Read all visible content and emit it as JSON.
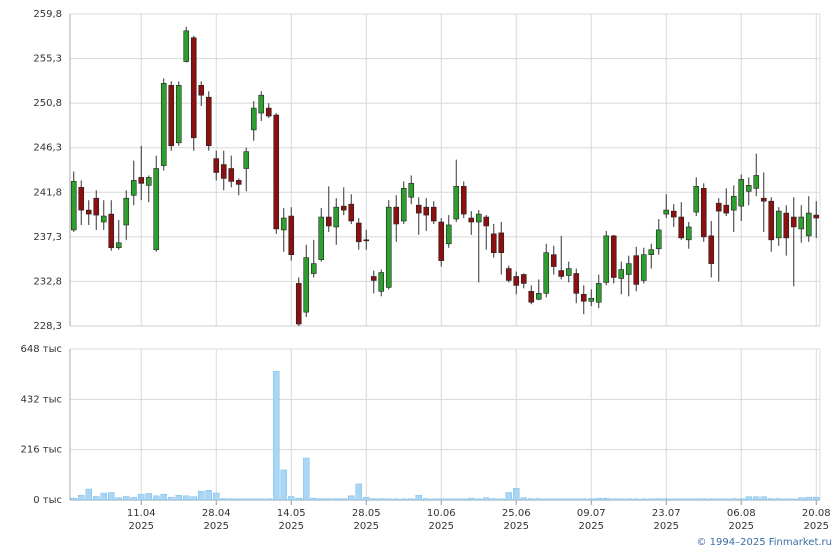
{
  "chart_data": [
    {
      "type": "candlestick",
      "ylim": [
        228.3,
        259.8
      ],
      "yticks": [
        {
          "value": 228.3,
          "label": "228,3"
        },
        {
          "value": 232.8,
          "label": "232,8"
        },
        {
          "value": 237.3,
          "label": "237,3"
        },
        {
          "value": 241.8,
          "label": "241,8"
        },
        {
          "value": 246.3,
          "label": "246,3"
        },
        {
          "value": 250.8,
          "label": "250,8"
        },
        {
          "value": 255.3,
          "label": "255,3"
        },
        {
          "value": 259.8,
          "label": "259,8"
        }
      ],
      "up_color": "#2e9e2e",
      "down_color": "#8b1010",
      "grid": true,
      "open": [
        238.0,
        242.3,
        240.0,
        241.2,
        238.8,
        239.6,
        236.2,
        238.5,
        241.5,
        243.3,
        242.5,
        236.0,
        244.5,
        252.6,
        246.8,
        255.0,
        257.4,
        252.6,
        251.4,
        245.2,
        244.6,
        244.2,
        243.0,
        244.2,
        248.1,
        249.8,
        250.3,
        249.6,
        238.0,
        239.4,
        232.6,
        229.7,
        233.6,
        235.0,
        239.3,
        238.3,
        240.4,
        240.6,
        238.7,
        237.0,
        233.3,
        231.8,
        232.2,
        240.3,
        238.9,
        241.3,
        240.5,
        240.3,
        240.3,
        238.8,
        236.6,
        239.1,
        242.4,
        239.2,
        238.8,
        239.3,
        237.6,
        237.7,
        234.1,
        233.3,
        233.5,
        231.8,
        231.0,
        231.6,
        235.5,
        233.9,
        233.4,
        233.6,
        231.5,
        230.8,
        230.7,
        232.7,
        237.4,
        233.1,
        233.5,
        235.4,
        232.9,
        235.5,
        236.1,
        239.6,
        239.9,
        239.3,
        237.0,
        239.8,
        242.2,
        237.4,
        240.7,
        240.5,
        240.0,
        240.4,
        241.9,
        242.2,
        241.2,
        240.9,
        237.2,
        239.7,
        239.3,
        238.1,
        237.4,
        239.5
      ],
      "high": [
        243.9,
        243.0,
        241.0,
        242.0,
        241.0,
        241.0,
        239.0,
        242.0,
        245.0,
        246.5,
        243.5,
        245.5,
        253.3,
        253.0,
        253.0,
        258.5,
        257.6,
        253.0,
        252.0,
        246.0,
        246.0,
        245.5,
        243.2,
        246.3,
        251.0,
        252.0,
        250.8,
        249.8,
        240.2,
        240.3,
        233.2,
        236.5,
        237.0,
        240.2,
        242.4,
        241.2,
        242.3,
        241.6,
        239.2,
        238.0,
        233.9,
        234.0,
        241.0,
        241.5,
        242.9,
        243.5,
        241.3,
        241.2,
        240.9,
        239.2,
        239.5,
        245.1,
        242.9,
        239.9,
        240.0,
        239.5,
        238.6,
        238.8,
        234.4,
        233.8,
        233.6,
        232.4,
        233.0,
        236.6,
        236.4,
        237.4,
        234.8,
        234.1,
        232.4,
        232.0,
        233.5,
        237.9,
        237.5,
        234.8,
        235.4,
        236.3,
        236.2,
        236.6,
        239.1,
        241.6,
        240.6,
        240.8,
        238.8,
        243.3,
        242.7,
        238.9,
        241.2,
        242.2,
        242.5,
        243.6,
        243.3,
        245.7,
        243.8,
        241.3,
        240.3,
        240.5,
        241.3,
        240.5,
        241.4,
        240.9
      ],
      "low": [
        237.8,
        238.5,
        238.5,
        238.0,
        238.0,
        235.9,
        236.0,
        237.0,
        240.5,
        241.0,
        240.8,
        235.8,
        244.0,
        246.0,
        246.5,
        254.9,
        246.0,
        250.5,
        246.0,
        243.0,
        242.0,
        242.3,
        241.5,
        241.9,
        247.0,
        249.0,
        249.3,
        237.6,
        235.8,
        234.9,
        228.3,
        229.2,
        233.2,
        234.8,
        237.8,
        236.5,
        239.5,
        238.6,
        236.0,
        236.0,
        231.6,
        231.3,
        232.0,
        236.8,
        238.6,
        240.6,
        237.5,
        237.9,
        238.6,
        234.3,
        236.2,
        238.8,
        239.2,
        237.5,
        232.7,
        236.0,
        235.2,
        233.5,
        232.7,
        231.5,
        232.1,
        230.5,
        230.9,
        231.2,
        233.5,
        233.0,
        232.7,
        230.6,
        229.5,
        230.3,
        230.1,
        232.4,
        232.6,
        231.5,
        231.3,
        231.8,
        232.6,
        234.1,
        235.5,
        239.2,
        238.3,
        237.0,
        236.1,
        239.4,
        236.8,
        233.2,
        232.8,
        239.4,
        237.8,
        238.9,
        240.5,
        241.4,
        237.8,
        235.8,
        236.4,
        235.4,
        232.3,
        236.7,
        236.8,
        237.2
      ],
      "close": [
        242.9,
        240.0,
        239.6,
        239.5,
        239.4,
        236.2,
        236.7,
        241.2,
        243.0,
        242.7,
        243.3,
        244.2,
        252.8,
        246.5,
        252.6,
        258.1,
        247.3,
        251.6,
        246.5,
        243.8,
        243.2,
        242.9,
        242.6,
        245.9,
        250.3,
        251.6,
        249.5,
        238.1,
        239.2,
        235.5,
        228.5,
        235.2,
        234.6,
        239.3,
        238.4,
        240.3,
        240.0,
        238.9,
        236.8,
        236.9,
        232.9,
        233.7,
        240.3,
        238.6,
        242.2,
        242.7,
        239.7,
        239.5,
        238.9,
        234.9,
        238.5,
        242.4,
        239.6,
        238.8,
        239.6,
        238.4,
        235.7,
        235.7,
        232.9,
        232.4,
        232.6,
        230.7,
        231.6,
        235.7,
        234.3,
        233.3,
        234.1,
        231.6,
        230.8,
        231.1,
        232.6,
        237.4,
        233.2,
        234.0,
        234.6,
        232.5,
        235.5,
        236.0,
        238.0,
        240.0,
        239.3,
        237.2,
        238.3,
        242.4,
        237.3,
        234.6,
        239.9,
        239.7,
        241.4,
        243.1,
        242.5,
        243.5,
        240.9,
        237.0,
        239.9,
        237.2,
        238.3,
        239.3,
        239.7,
        239.2
      ]
    },
    {
      "type": "bar",
      "color": "#a9d6f5",
      "grid": true,
      "ylim": [
        0,
        648
      ],
      "yticks": [
        {
          "value": 0,
          "label": "0 тыс"
        },
        {
          "value": 216,
          "label": "216 тыс"
        },
        {
          "value": 432,
          "label": "432 тыс"
        },
        {
          "value": 648,
          "label": "648 тыс"
        }
      ],
      "categories": [
        null,
        null,
        null,
        null,
        null,
        null,
        null,
        null,
        null,
        {
          "date": "11.04",
          "year": "2025"
        },
        null,
        null,
        null,
        null,
        null,
        null,
        null,
        null,
        null,
        {
          "date": "28.04",
          "year": "2025"
        },
        null,
        null,
        null,
        null,
        null,
        null,
        null,
        null,
        null,
        {
          "date": "14.05",
          "year": "2025"
        },
        null,
        null,
        null,
        null,
        null,
        null,
        null,
        null,
        null,
        {
          "date": "28.05",
          "year": "2025"
        },
        null,
        null,
        null,
        null,
        null,
        null,
        null,
        null,
        null,
        {
          "date": "10.06",
          "year": "2025"
        },
        null,
        null,
        null,
        null,
        null,
        null,
        null,
        null,
        null,
        {
          "date": "25.06",
          "year": "2025"
        },
        null,
        null,
        null,
        null,
        null,
        null,
        null,
        null,
        null,
        {
          "date": "09.07",
          "year": "2025"
        },
        null,
        null,
        null,
        null,
        null,
        null,
        null,
        null,
        null,
        {
          "date": "23.07",
          "year": "2025"
        },
        null,
        null,
        null,
        null,
        null,
        null,
        null,
        null,
        null,
        {
          "date": "06.08",
          "year": "2025"
        },
        null,
        null,
        null,
        null,
        null,
        null,
        null,
        null,
        null,
        {
          "date": "20.08",
          "year": "2025"
        }
      ],
      "values": [
        8,
        20,
        47,
        15,
        30,
        32,
        10,
        15,
        12,
        25,
        28,
        18,
        25,
        12,
        20,
        18,
        14,
        38,
        42,
        30,
        6,
        6,
        5,
        5,
        5,
        5,
        5,
        552,
        129,
        15,
        8,
        180,
        8,
        6,
        6,
        6,
        6,
        18,
        69,
        12,
        6,
        6,
        5,
        5,
        5,
        5,
        20,
        6,
        5,
        5,
        5,
        5,
        5,
        8,
        5,
        10,
        6,
        5,
        32,
        50,
        10,
        6,
        6,
        5,
        5,
        5,
        5,
        5,
        5,
        5,
        8,
        8,
        5,
        5,
        5,
        5,
        5,
        5,
        6,
        6,
        5,
        5,
        5,
        5,
        6,
        5,
        5,
        5,
        6,
        5,
        14,
        14,
        14,
        6,
        6,
        5,
        5,
        10,
        12,
        12
      ]
    }
  ],
  "footer": "© 1994–2025 Finmarket.ru"
}
